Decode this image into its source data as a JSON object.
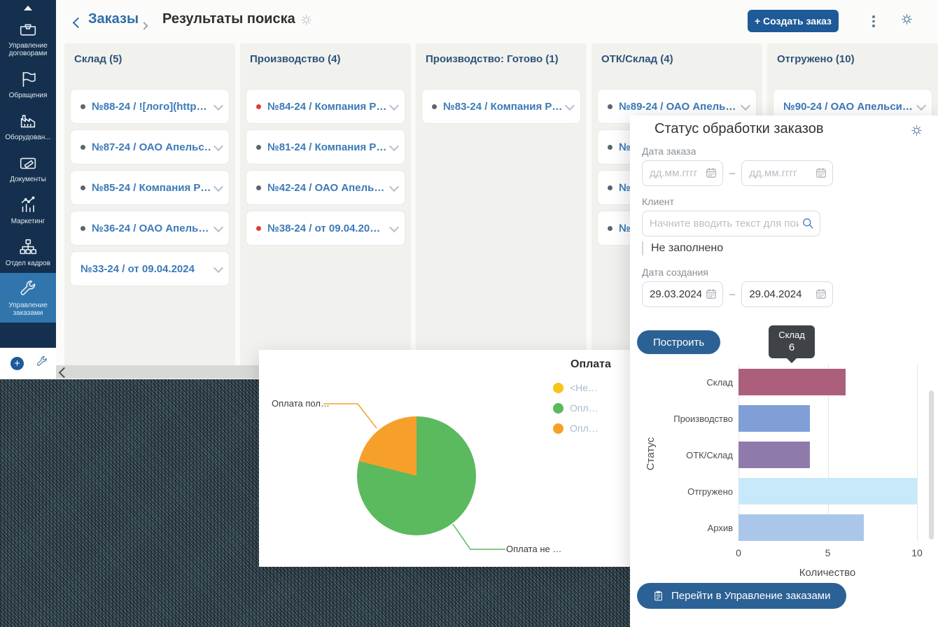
{
  "sidebar": {
    "items": [
      {
        "icon": "contracts-icon",
        "label": "Управление договорами",
        "active": false
      },
      {
        "icon": "flag-icon",
        "label": "Обращения",
        "active": false
      },
      {
        "icon": "factory-icon",
        "label": "Оборудован...",
        "active": false
      },
      {
        "icon": "documents-icon",
        "label": "Документы",
        "active": false
      },
      {
        "icon": "marketing-icon",
        "label": "Маркетинг",
        "active": false
      },
      {
        "icon": "orgchart-icon",
        "label": "Отдел кадров",
        "active": false
      },
      {
        "icon": "wrench-icon",
        "label": "Управление заказами",
        "active": true
      }
    ]
  },
  "header": {
    "breadcrumb_link": "Заказы",
    "title": "Результаты поиска",
    "create_button": "+ Создать заказ"
  },
  "kanban": {
    "columns": [
      {
        "title": "Склад (5)",
        "cards": [
          {
            "dot": "gray",
            "text": "№88-24 / ![лого](http…"
          },
          {
            "dot": "gray",
            "text": "№87-24 / ОАО Апельс…"
          },
          {
            "dot": "gray",
            "text": "№85-24 / Компания Р…"
          },
          {
            "dot": "gray",
            "text": "№36-24 / ОАО Апель…"
          },
          {
            "dot": "none",
            "text": "№33-24 / от 09.04.2024"
          }
        ]
      },
      {
        "title": "Производство (4)",
        "cards": [
          {
            "dot": "red",
            "text": "№84-24 / Компания Р…"
          },
          {
            "dot": "gray",
            "text": "№81-24 / Компания Р…"
          },
          {
            "dot": "gray",
            "text": "№42-24 / ОАО Апель…"
          },
          {
            "dot": "red",
            "text": "№38-24 / от 09.04.20…"
          }
        ]
      },
      {
        "title": "Производство: Готово (1)",
        "cards": [
          {
            "dot": "gray",
            "text": "№83-24 / Компания Р…"
          }
        ]
      },
      {
        "title": "ОТК/Склад (4)",
        "cards": [
          {
            "dot": "gray",
            "text": "№89-24 / ОАО Апель…"
          },
          {
            "dot": "gray",
            "text": "№8"
          },
          {
            "dot": "gray",
            "text": "№7"
          },
          {
            "dot": "gray",
            "text": "№3"
          }
        ]
      },
      {
        "title": "Отгружено (10)",
        "cards": [
          {
            "dot": "none",
            "text": "№90-24 / ОАО Апельси…"
          }
        ]
      }
    ]
  },
  "pie_panel": {
    "title": "Оплата",
    "legend": [
      {
        "label": "<Не…",
        "color": "#f7c515"
      },
      {
        "label": "Опл…",
        "color": "#5bb95e"
      },
      {
        "label": "Опл…",
        "color": "#f6a02b"
      }
    ],
    "callout_left": "Оплата пол…",
    "callout_right": "Оплата не …"
  },
  "status_panel": {
    "title": "Статус обработки заказов",
    "order_date_label": "Дата заказа",
    "date_placeholder": "дд.мм.гггг",
    "range_dash": "–",
    "client_label": "Клиент",
    "client_placeholder": "Начните вводить текст для поиск",
    "not_filled_option": "Не заполнено",
    "creation_date_label": "Дата создания",
    "creation_date_from": "29.03.2024",
    "creation_date_to": "29.04.2024",
    "build_button": "Построить",
    "goto_button": "Перейти в Управление заказами"
  },
  "chart_data": [
    {
      "type": "bar",
      "orientation": "horizontal",
      "title": "Статус обработки заказов",
      "categories": [
        "Склад",
        "Производство",
        "ОТК/Склад",
        "Отгружено",
        "Архив"
      ],
      "values": [
        6,
        4,
        4,
        10,
        7
      ],
      "bar_colors": [
        "#ac5f7d",
        "#7f9fd6",
        "#8f7bab",
        "#c8e9f9",
        "#aac7ea"
      ],
      "xlabel": "Количество",
      "ylabel": "Статус",
      "xlim": [
        0,
        10
      ],
      "xticks": [
        0,
        5,
        10
      ],
      "grid": true,
      "legend": false,
      "tooltip": {
        "category": "Склад",
        "value": 6
      }
    },
    {
      "type": "pie",
      "title": "Оплата",
      "legend_position": "top-right",
      "slices": [
        {
          "label": "<Не…",
          "color": "#f7c515",
          "fraction": 0
        },
        {
          "label": "Оплата не …",
          "color": "#5bb95e",
          "fraction": 0.79
        },
        {
          "label": "Оплата пол…",
          "color": "#f6a02b",
          "fraction": 0.21
        }
      ]
    }
  ]
}
